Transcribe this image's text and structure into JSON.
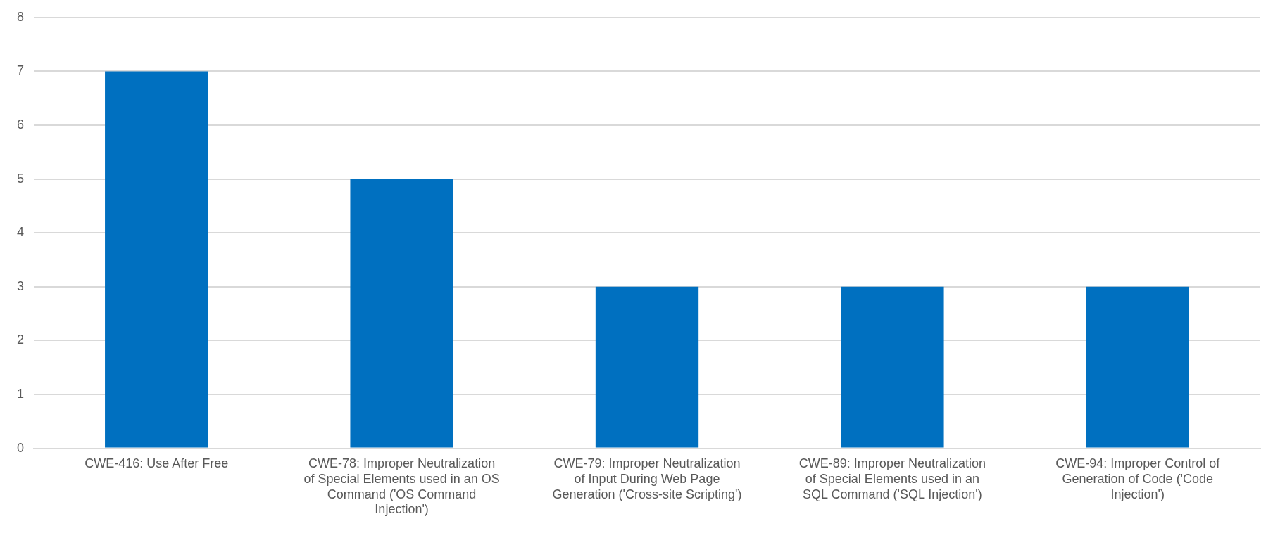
{
  "chart_data": {
    "type": "bar",
    "categories": [
      "CWE-416: Use After Free",
      "CWE-78: Improper Neutralization of Special Elements used in an OS Command ('OS Command Injection')",
      "CWE-79: Improper Neutralization of Input During Web Page Generation ('Cross-site Scripting')",
      "CWE-89: Improper Neutralization of Special Elements used in an SQL Command ('SQL Injection')",
      "CWE-94: Improper Control of Generation of Code ('Code Injection')"
    ],
    "values": [
      7,
      5,
      3,
      3,
      3
    ],
    "color": "#0070c0",
    "ylim": [
      0,
      8
    ],
    "yticks": [
      0,
      1,
      2,
      3,
      4,
      5,
      6,
      7,
      8
    ],
    "grid": "y",
    "legend": false
  }
}
